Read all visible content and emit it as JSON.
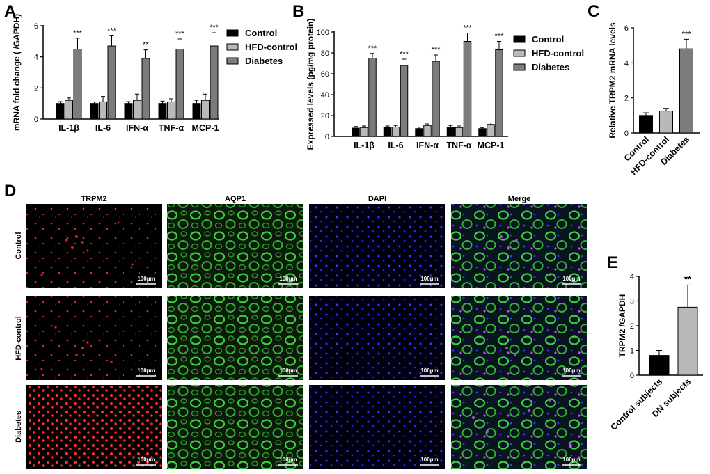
{
  "colors": {
    "control": "#000000",
    "hfd_control": "#b9b9b9",
    "diabetes": "#7c7c7c",
    "control_subjects": "#000000",
    "dn_subjects": "#b9b9b9",
    "trpm2_stain": "#ff2a2a",
    "aqp1_stain": "#39d23a",
    "dapi_stain": "#3a3aff",
    "merge_purple": "#d040ff"
  },
  "panels": {
    "A": "A",
    "B": "B",
    "C": "C",
    "D": "D",
    "E": "E"
  },
  "chart_data": [
    {
      "id": "A",
      "type": "bar",
      "ylabel": "mRNA fold change ( /GAPDH)",
      "ylim": [
        0,
        6
      ],
      "yticks": [
        0,
        2,
        4,
        6
      ],
      "categories": [
        "IL-1β",
        "IL-6",
        "IFN-α",
        "TNF-α",
        "MCP-1"
      ],
      "series": [
        {
          "name": "Control",
          "values": [
            1.0,
            1.0,
            1.0,
            1.0,
            1.0
          ],
          "errors": [
            0.12,
            0.1,
            0.12,
            0.15,
            0.2
          ]
        },
        {
          "name": "HFD-control",
          "values": [
            1.2,
            1.1,
            1.2,
            1.1,
            1.2
          ],
          "errors": [
            0.15,
            0.35,
            0.4,
            0.2,
            0.4
          ]
        },
        {
          "name": "Diabetes",
          "values": [
            4.5,
            4.7,
            3.9,
            4.5,
            4.7
          ],
          "errors": [
            0.7,
            0.65,
            0.55,
            0.65,
            0.85
          ]
        }
      ],
      "significance": [
        "***",
        "***",
        "**",
        "***",
        "***"
      ],
      "legend": "right"
    },
    {
      "id": "B",
      "type": "bar",
      "ylabel": "Expressed levels (pg/mg protein)",
      "ylim": [
        0,
        100
      ],
      "yticks": [
        0,
        20,
        40,
        60,
        80,
        100
      ],
      "categories": [
        "IL-1β",
        "IL-6",
        "IFN-α",
        "TNF-α",
        "MCP-1"
      ],
      "series": [
        {
          "name": "Control",
          "values": [
            8,
            8.5,
            7.5,
            9,
            7.5
          ],
          "errors": [
            1.5,
            1.5,
            1.5,
            1.5,
            1.0
          ]
        },
        {
          "name": "HFD-control",
          "values": [
            8.5,
            9,
            10.5,
            8.5,
            11.5
          ],
          "errors": [
            1.5,
            1.5,
            1.5,
            1.5,
            1.5
          ]
        },
        {
          "name": "Diabetes",
          "values": [
            75,
            68,
            72,
            91,
            83
          ],
          "errors": [
            4.5,
            6,
            6,
            8,
            8
          ]
        }
      ],
      "significance": [
        "***",
        "***",
        "***",
        "***",
        "***"
      ],
      "legend": "right"
    },
    {
      "id": "C",
      "type": "bar",
      "ylabel": "Relative TRPM2 mRNA levels",
      "ylim": [
        0,
        6
      ],
      "yticks": [
        0,
        2,
        4,
        6
      ],
      "categories": [
        "Control",
        "HFD-control",
        "Diabetes"
      ],
      "values": [
        1.0,
        1.25,
        4.8
      ],
      "errors": [
        0.15,
        0.15,
        0.55
      ],
      "significance": [
        "",
        "",
        "***"
      ]
    },
    {
      "id": "E",
      "type": "bar",
      "ylabel": "TRPM2 /GAPDH",
      "ylim": [
        0,
        4
      ],
      "yticks": [
        0,
        1,
        2,
        3,
        4
      ],
      "categories": [
        "Control subjects",
        "DN subjects"
      ],
      "values": [
        0.8,
        2.75
      ],
      "errors": [
        0.2,
        0.9
      ],
      "significance": [
        "",
        "**"
      ]
    }
  ],
  "micrographs": {
    "columns": [
      "TRPM2",
      "AQP1",
      "DAPI",
      "Merge"
    ],
    "rows": [
      "Control",
      "HFD-control",
      "Diabetes"
    ],
    "scale_bar": "100μm"
  }
}
